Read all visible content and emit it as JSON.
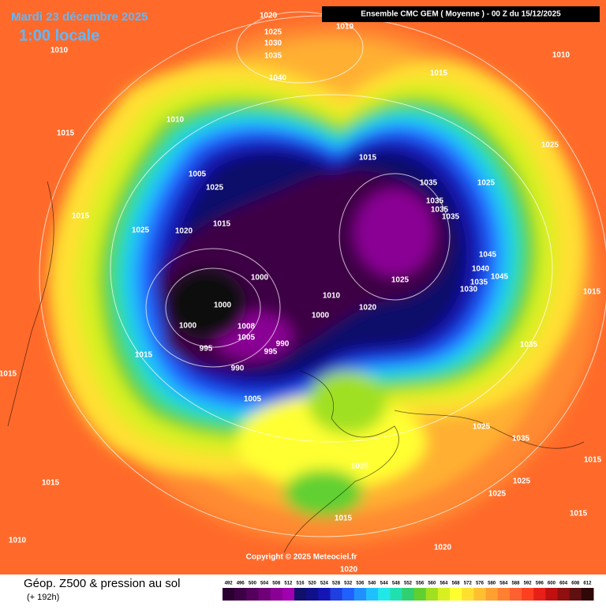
{
  "header": {
    "date": "Mardi 23 décembre 2025",
    "time": "1:00 locale",
    "model": "Ensemble CMC GEM  ( Moyenne )  -  00 Z du 15/12/2025"
  },
  "copyright": "Copyright © 2025 Meteociel.fr",
  "footer": {
    "title": "Géop. Z500 & pression au sol",
    "subtitle": "(+ 192h)"
  },
  "isobar_labels": [
    1020,
    1025,
    1030,
    1035,
    1040,
    1010,
    1010,
    1015,
    1010,
    1010,
    1015,
    1025,
    1005,
    1025,
    1015,
    1035,
    1025,
    1035,
    1035,
    1035,
    1015,
    1025,
    1020,
    1015,
    1045,
    1040,
    1045,
    1035,
    1030,
    1000,
    1025,
    1010,
    1000,
    1020,
    1000,
    1015,
    1000,
    1008,
    1005,
    990,
    995,
    995,
    1015,
    1035,
    990,
    1015,
    1005,
    1025,
    1035,
    1025,
    1015,
    1015,
    1025,
    1025,
    1015,
    1015,
    1010,
    1020,
    1020
  ],
  "legend": {
    "values": [
      492,
      496,
      500,
      504,
      508,
      512,
      516,
      520,
      524,
      528,
      532,
      536,
      540,
      544,
      548,
      552,
      556,
      560,
      564,
      568,
      572,
      576,
      580,
      584,
      588,
      592,
      596,
      600,
      604,
      608,
      612
    ],
    "colors": [
      "#2a0030",
      "#3d0045",
      "#55005e",
      "#6f0077",
      "#8a0094",
      "#a000b0",
      "#10106a",
      "#10108a",
      "#1515b5",
      "#1f3fe0",
      "#2060ff",
      "#2090ff",
      "#20c0ff",
      "#20e8e8",
      "#20e0b0",
      "#30d070",
      "#60d030",
      "#a0e020",
      "#d8f020",
      "#ffff30",
      "#ffe030",
      "#ffc030",
      "#ffa030",
      "#ff8030",
      "#ff6030",
      "#ff4020",
      "#e82018",
      "#c01010",
      "#901010",
      "#601010",
      "#300808"
    ]
  }
}
